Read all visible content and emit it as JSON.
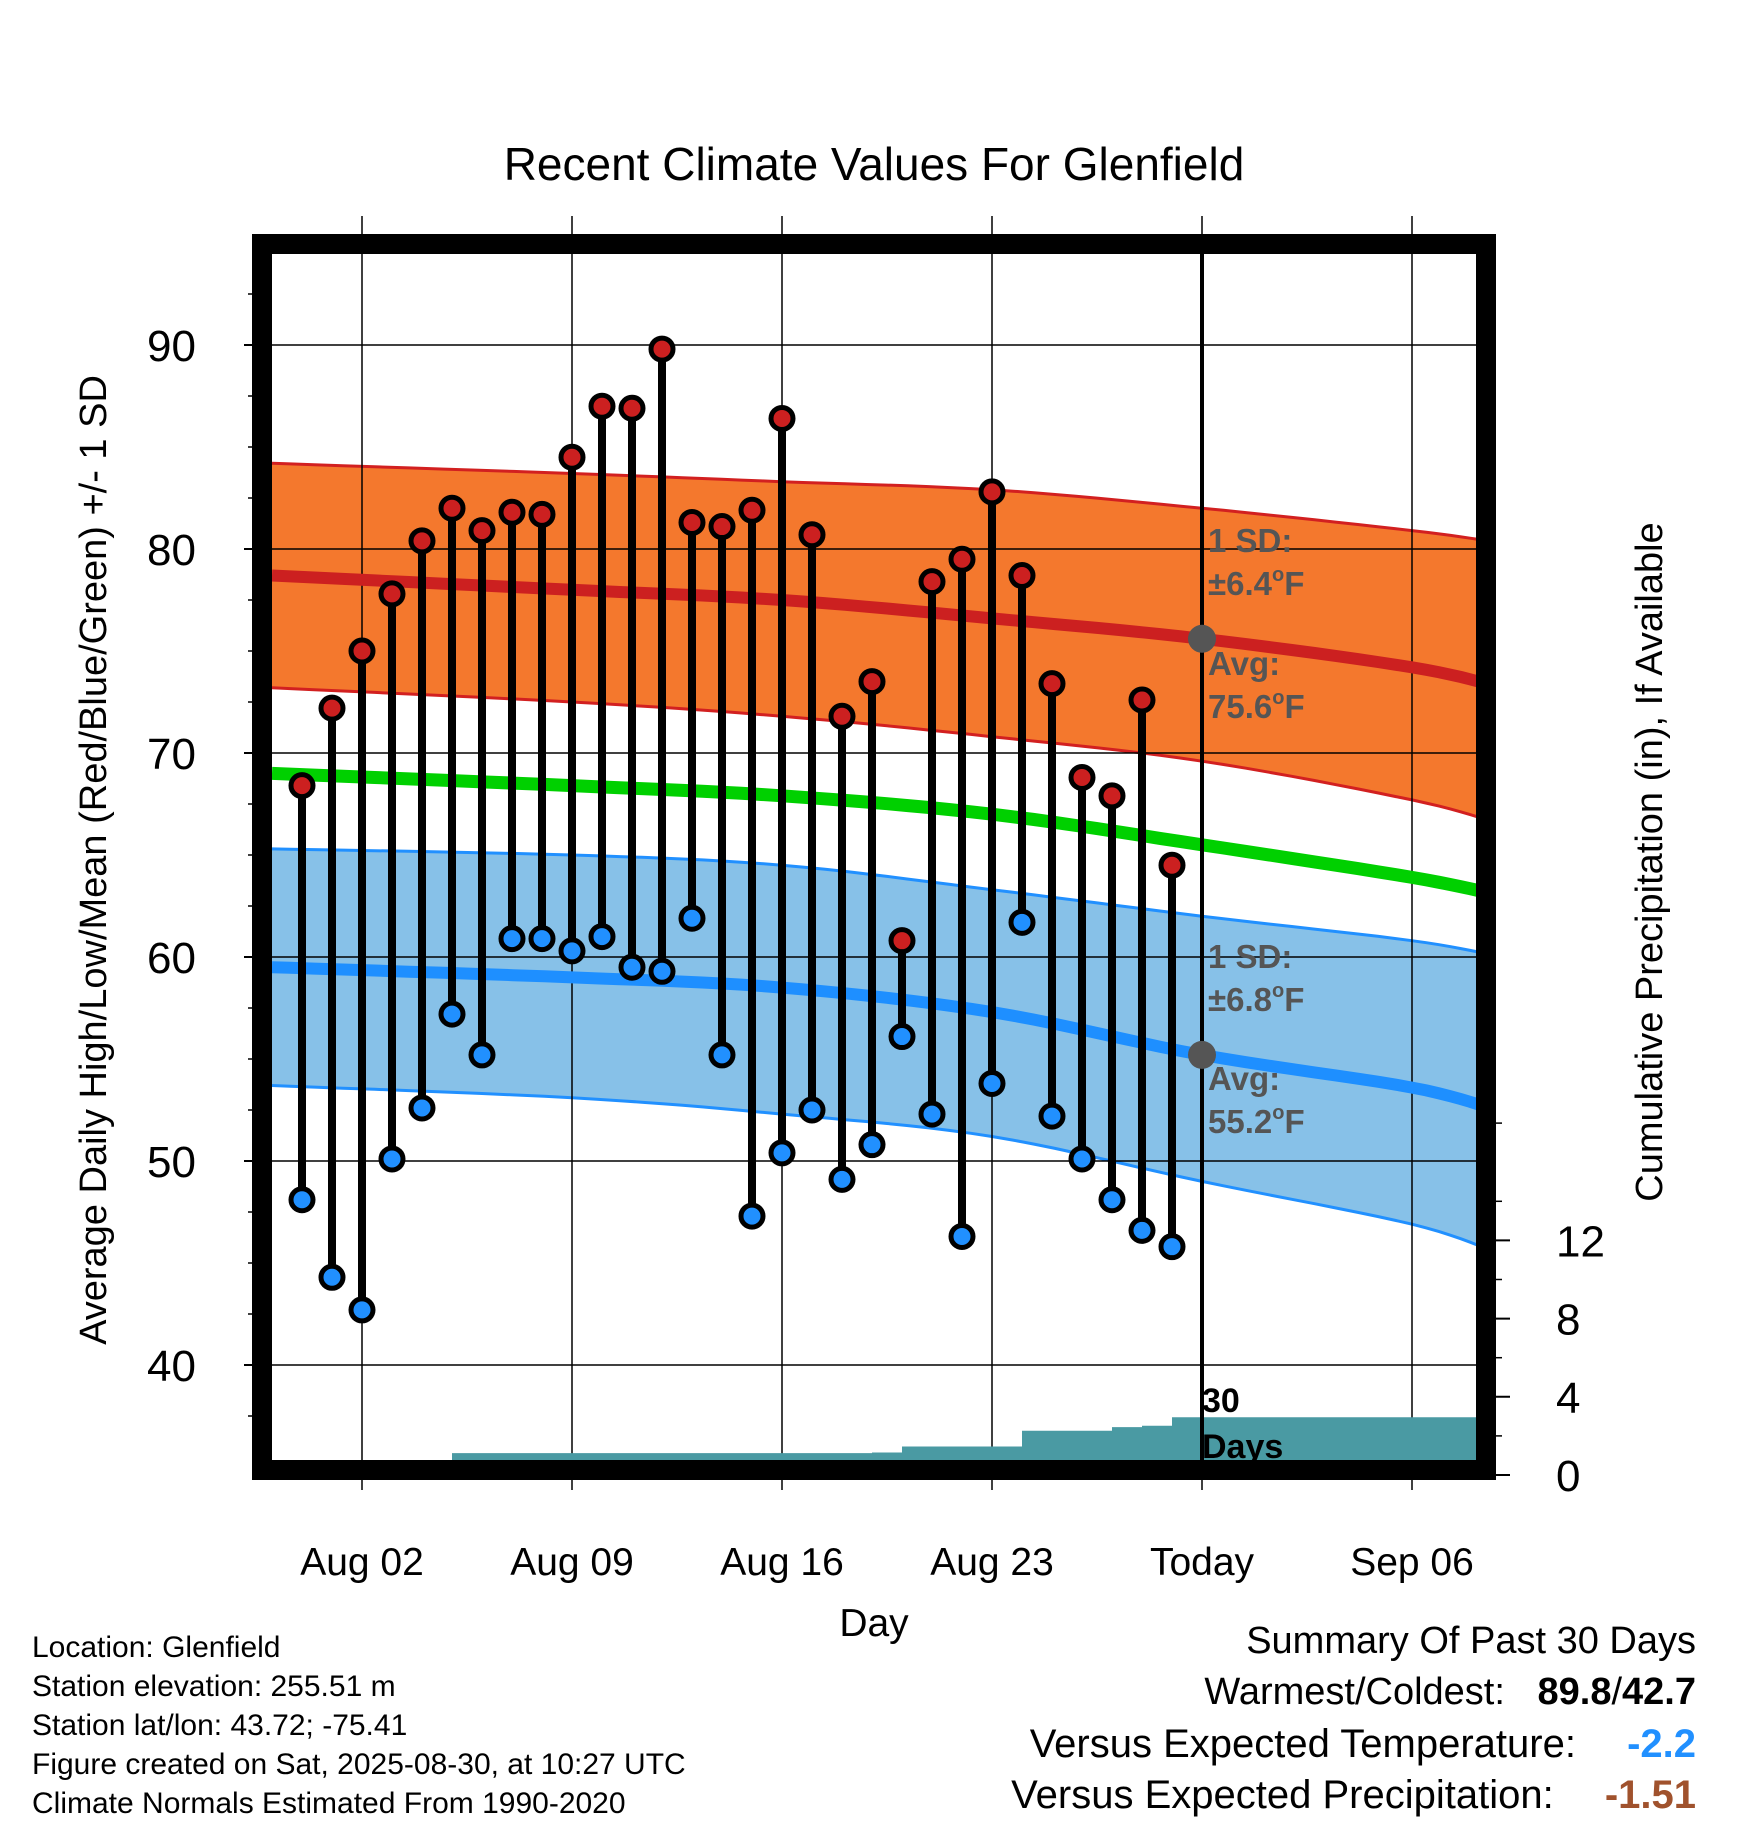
{
  "chart_data": {
    "type": "line",
    "title": "Recent Climate Values For Glenfield",
    "xlabel": "Day",
    "ylabel": "Average Daily High/Low/Mean (Red/Blue/Green) +/- 1 SD",
    "y2label": "Cumulative Precipitation (in), If Available",
    "x_tick_labels": [
      "Aug 02",
      "Aug 09",
      "Aug 16",
      "Aug 23",
      "Today",
      "Sep 06"
    ],
    "y_ticks": [
      40,
      50,
      60,
      70,
      80,
      90
    ],
    "y2_ticks": [
      0,
      4,
      8,
      12
    ],
    "ylim": [
      35.2,
      95
    ],
    "y2lim": [
      0,
      25
    ],
    "x_start": "Jul 30",
    "x_end": "Sep 09",
    "days": [
      "Jul 31",
      "Aug 01",
      "Aug 02",
      "Aug 03",
      "Aug 04",
      "Aug 05",
      "Aug 06",
      "Aug 07",
      "Aug 08",
      "Aug 09",
      "Aug 10",
      "Aug 11",
      "Aug 12",
      "Aug 13",
      "Aug 14",
      "Aug 15",
      "Aug 16",
      "Aug 17",
      "Aug 18",
      "Aug 19",
      "Aug 20",
      "Aug 21",
      "Aug 22",
      "Aug 23",
      "Aug 24",
      "Aug 25",
      "Aug 26",
      "Aug 27",
      "Aug 28",
      "Aug 29"
    ],
    "daily_high": [
      68.4,
      72.2,
      75.0,
      77.8,
      80.4,
      82.0,
      80.9,
      81.8,
      81.7,
      84.5,
      87.0,
      86.9,
      89.8,
      81.3,
      81.1,
      81.9,
      86.4,
      80.7,
      71.8,
      73.5,
      60.8,
      78.4,
      79.5,
      82.8,
      78.7,
      73.4,
      68.8,
      67.9,
      72.6,
      64.5
    ],
    "daily_low": [
      48.1,
      44.3,
      42.7,
      50.1,
      52.6,
      57.2,
      55.2,
      60.9,
      60.9,
      60.3,
      61.0,
      59.5,
      59.3,
      61.9,
      55.2,
      47.3,
      50.4,
      52.5,
      49.1,
      50.8,
      56.1,
      52.3,
      46.3,
      53.8,
      61.7,
      52.2,
      50.1,
      48.1,
      46.6,
      45.8
    ],
    "today": "Aug 30",
    "normals_x": [
      "Jul 30",
      "Aug 09",
      "Aug 16",
      "Aug 23",
      "Aug 30",
      "Sep 06",
      "Sep 09"
    ],
    "normal_high": [
      78.7,
      78.0,
      77.5,
      76.6,
      75.6,
      74.2,
      73.2
    ],
    "normal_high_upper": [
      84.2,
      83.7,
      83.3,
      82.9,
      82.0,
      80.9,
      80.3
    ],
    "normal_high_lower": [
      73.2,
      72.5,
      71.8,
      70.8,
      69.6,
      67.7,
      66.5
    ],
    "normal_mean": [
      69.0,
      68.4,
      67.9,
      67.0,
      65.5,
      63.9,
      63.0
    ],
    "normal_low": [
      59.5,
      59.0,
      58.5,
      57.3,
      55.2,
      53.6,
      52.4
    ],
    "normal_low_upper": [
      65.3,
      65.0,
      64.5,
      63.3,
      62.0,
      60.8,
      60.0
    ],
    "normal_low_lower": [
      53.7,
      53.1,
      52.3,
      51.2,
      49.0,
      46.9,
      45.4
    ],
    "precip_x": [
      "Aug 04",
      "Aug 05",
      "Aug 19",
      "Aug 20",
      "Aug 23",
      "Aug 24",
      "Aug 26",
      "Aug 27",
      "Aug 28",
      "Aug 29",
      "Sep 09"
    ],
    "precip_cum": [
      0.0,
      1.12,
      1.15,
      1.46,
      1.46,
      2.26,
      2.26,
      2.45,
      2.52,
      2.95,
      2.95
    ],
    "high_sd_label": "1 SD:",
    "high_sd_value": "±6.4",
    "high_avg_label": "Avg:",
    "high_avg_value": "75.6",
    "low_sd_label": "1 SD:",
    "low_sd_value": "±6.8",
    "low_avg_label": "Avg:",
    "low_avg_value": "55.2",
    "degree_mark": "o",
    "unit_letter": "F",
    "precip_label_line1": "30",
    "precip_label_line2": "Days",
    "colors": {
      "high_band": "#f4782d",
      "high_edge": "#d22020",
      "high_avg": "#cc2020",
      "low_band": "#87c1e8",
      "low_edge": "#2190ff",
      "low_avg": "#1e8fff",
      "mean": "#00d000",
      "precip": "#4a9aa3",
      "high_dot": "#cc2020",
      "low_dot": "#2190ff",
      "annotation": "#555555"
    }
  },
  "info": {
    "location": "Location: Glenfield",
    "elevation": "Station elevation: 255.51 m",
    "latlon": "Station lat/lon: 43.72; -75.41",
    "created": "Figure created on Sat, 2025-08-30, at 10:27 UTC",
    "normals": "Climate Normals Estimated From 1990-2020"
  },
  "summary": {
    "title": "Summary Of Past 30 Days",
    "warm_cold_label": "Warmest/Coldest:",
    "warmest": "89.8",
    "separator": "/",
    "coldest": "42.7",
    "temp_label": "Versus Expected Temperature:",
    "temp_value": "-2.2",
    "temp_color": "#2190ff",
    "precip_label": "Versus Expected Precipitation:",
    "precip_value": "-1.51",
    "precip_color": "#a0522d"
  }
}
